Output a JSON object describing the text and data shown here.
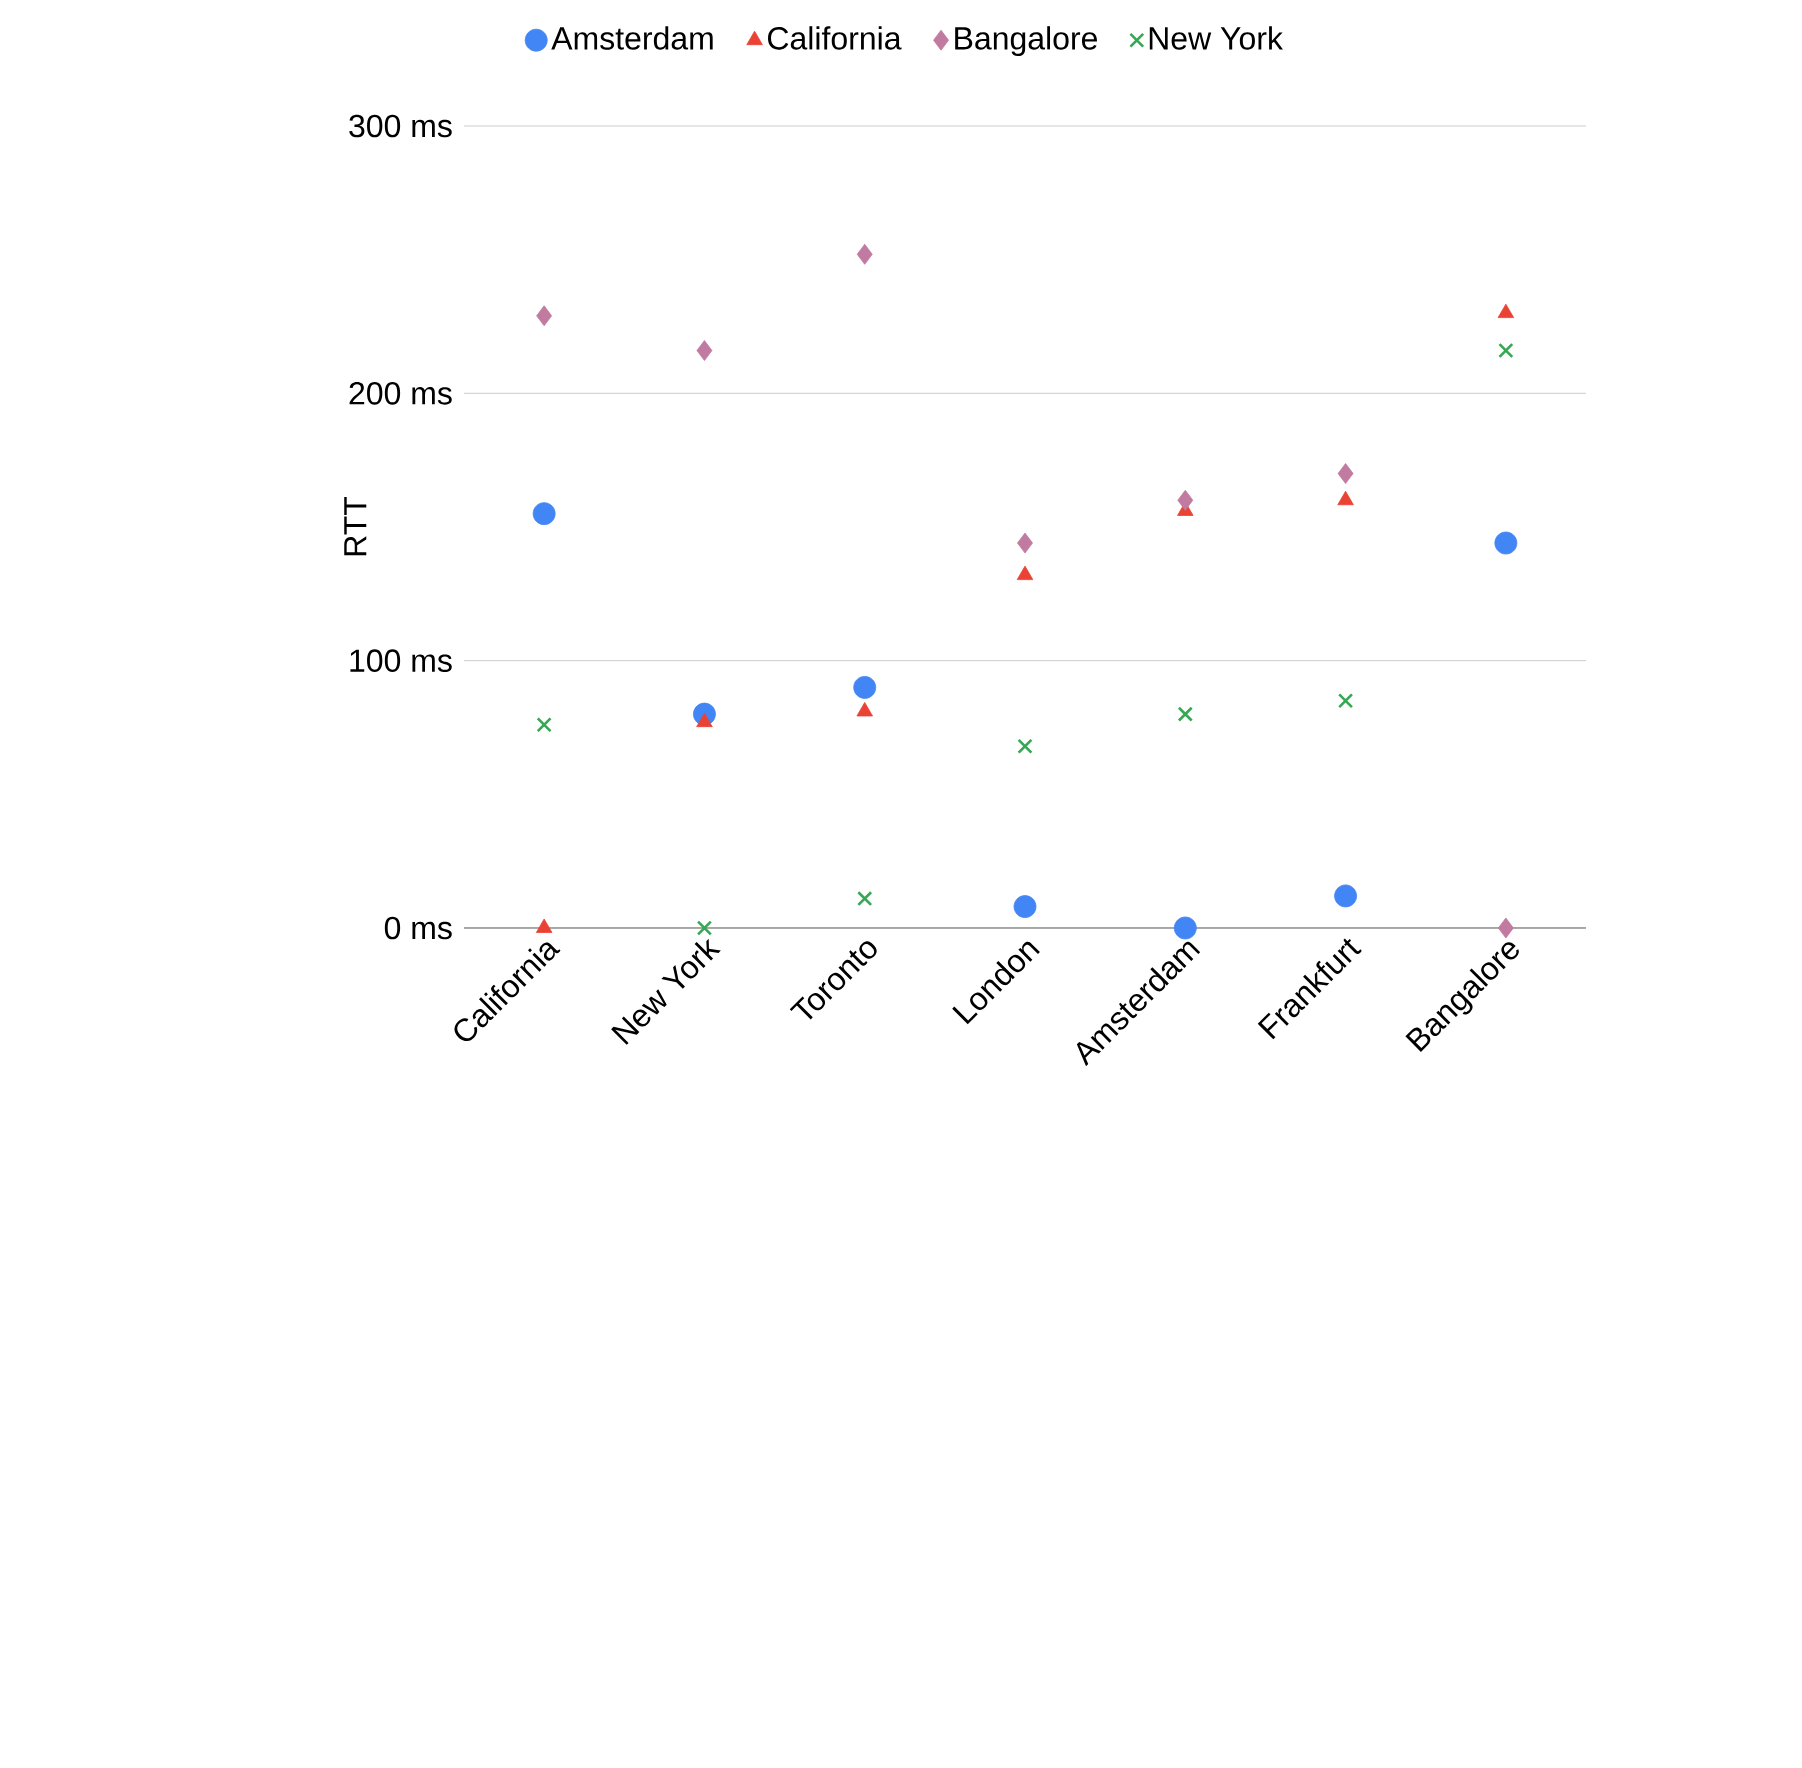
{
  "chart_data": {
    "type": "scatter",
    "ylabel": "RTT",
    "categories": [
      "California",
      "New York",
      "Toronto",
      "London",
      "Amsterdam",
      "Frankfurt",
      "Bangalore"
    ],
    "series": [
      {
        "name": "Amsterdam",
        "color": "#4285f4",
        "marker": "circle",
        "values": [
          155,
          80,
          90,
          8,
          0,
          12,
          144
        ]
      },
      {
        "name": "California",
        "color": "#ea4335",
        "marker": "triangle",
        "values": [
          0,
          77,
          81,
          132,
          156,
          160,
          230
        ]
      },
      {
        "name": "Bangalore",
        "color": "#c27ba0",
        "marker": "diamond",
        "values": [
          229,
          216,
          252,
          144,
          160,
          170,
          0
        ]
      },
      {
        "name": "New York",
        "color": "#34a853",
        "marker": "cross",
        "values": [
          76,
          0,
          11,
          68,
          80,
          85,
          216
        ]
      }
    ],
    "ylim": [
      0,
      300
    ],
    "yticks": [
      {
        "value": 0,
        "label": "0 ms"
      },
      {
        "value": 100,
        "label": "100 ms"
      },
      {
        "value": 200,
        "label": "200 ms"
      },
      {
        "value": 300,
        "label": "300 ms"
      }
    ],
    "grid": "y",
    "legend": "top"
  }
}
